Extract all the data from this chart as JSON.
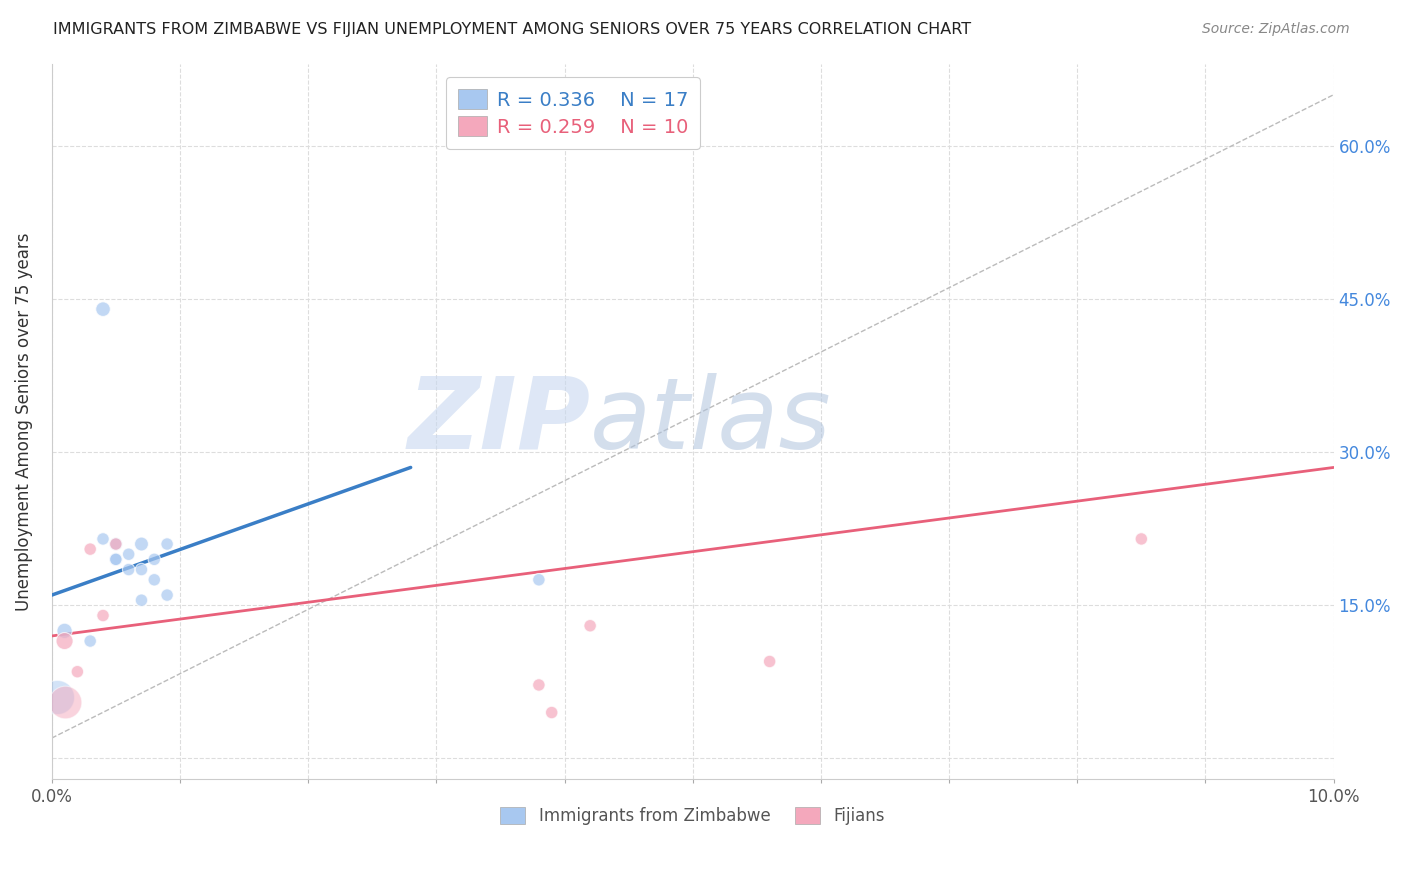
{
  "title": "IMMIGRANTS FROM ZIMBABWE VS FIJIAN UNEMPLOYMENT AMONG SENIORS OVER 75 YEARS CORRELATION CHART",
  "source": "Source: ZipAtlas.com",
  "ylabel": "Unemployment Among Seniors over 75 years",
  "xlim": [
    0.0,
    0.1
  ],
  "ylim": [
    -0.02,
    0.68
  ],
  "x_ticks": [
    0.0,
    0.01,
    0.02,
    0.03,
    0.04,
    0.05,
    0.06,
    0.07,
    0.08,
    0.09,
    0.1
  ],
  "x_tick_labels_show": {
    "0.0": "0.0%",
    "0.1": "10.0%"
  },
  "y_ticks": [
    0.0,
    0.15,
    0.3,
    0.45,
    0.6
  ],
  "y_right_labels": [
    "",
    "15.0%",
    "30.0%",
    "45.0%",
    "60.0%"
  ],
  "watermark_zip": "ZIP",
  "watermark_atlas": "atlas",
  "blue_color": "#A8C8F0",
  "pink_color": "#F4A8BC",
  "blue_line_color": "#3A7EC6",
  "pink_line_color": "#E8607A",
  "legend_blue_label": "R = 0.336    N = 17",
  "legend_pink_label": "R = 0.259    N = 10",
  "blue_scatter_x": [
    0.001,
    0.003,
    0.004,
    0.004,
    0.005,
    0.005,
    0.005,
    0.006,
    0.006,
    0.007,
    0.007,
    0.007,
    0.008,
    0.008,
    0.009,
    0.009,
    0.038
  ],
  "blue_scatter_y": [
    0.125,
    0.115,
    0.44,
    0.215,
    0.195,
    0.195,
    0.21,
    0.185,
    0.2,
    0.155,
    0.185,
    0.21,
    0.195,
    0.175,
    0.16,
    0.21,
    0.175
  ],
  "blue_scatter_sizes": [
    120,
    80,
    110,
    80,
    90,
    80,
    90,
    80,
    80,
    80,
    80,
    100,
    80,
    80,
    80,
    80,
    80
  ],
  "pink_scatter_x": [
    0.001,
    0.002,
    0.003,
    0.004,
    0.005,
    0.038,
    0.042,
    0.056,
    0.085,
    0.039
  ],
  "pink_scatter_y": [
    0.115,
    0.085,
    0.205,
    0.14,
    0.21,
    0.072,
    0.13,
    0.095,
    0.215,
    0.045
  ],
  "pink_scatter_sizes": [
    150,
    80,
    80,
    80,
    80,
    80,
    80,
    80,
    80,
    80
  ],
  "large_blue_x": [
    0.0004
  ],
  "large_blue_y": [
    0.06
  ],
  "large_blue_size": [
    600
  ],
  "large_pink_x": [
    0.001
  ],
  "large_pink_y": [
    0.055
  ],
  "large_pink_size": [
    550
  ],
  "blue_trendline_x": [
    0.0,
    0.028
  ],
  "blue_trendline_y": [
    0.16,
    0.285
  ],
  "pink_trendline_x": [
    0.0,
    0.1
  ],
  "pink_trendline_y": [
    0.12,
    0.285
  ],
  "dashed_line_x": [
    0.0,
    0.1
  ],
  "dashed_line_y": [
    0.02,
    0.65
  ],
  "grid_color": "#DDDDDD",
  "background_color": "#FFFFFF",
  "grid_linestyle": "--",
  "right_tick_color": "#4488DD"
}
